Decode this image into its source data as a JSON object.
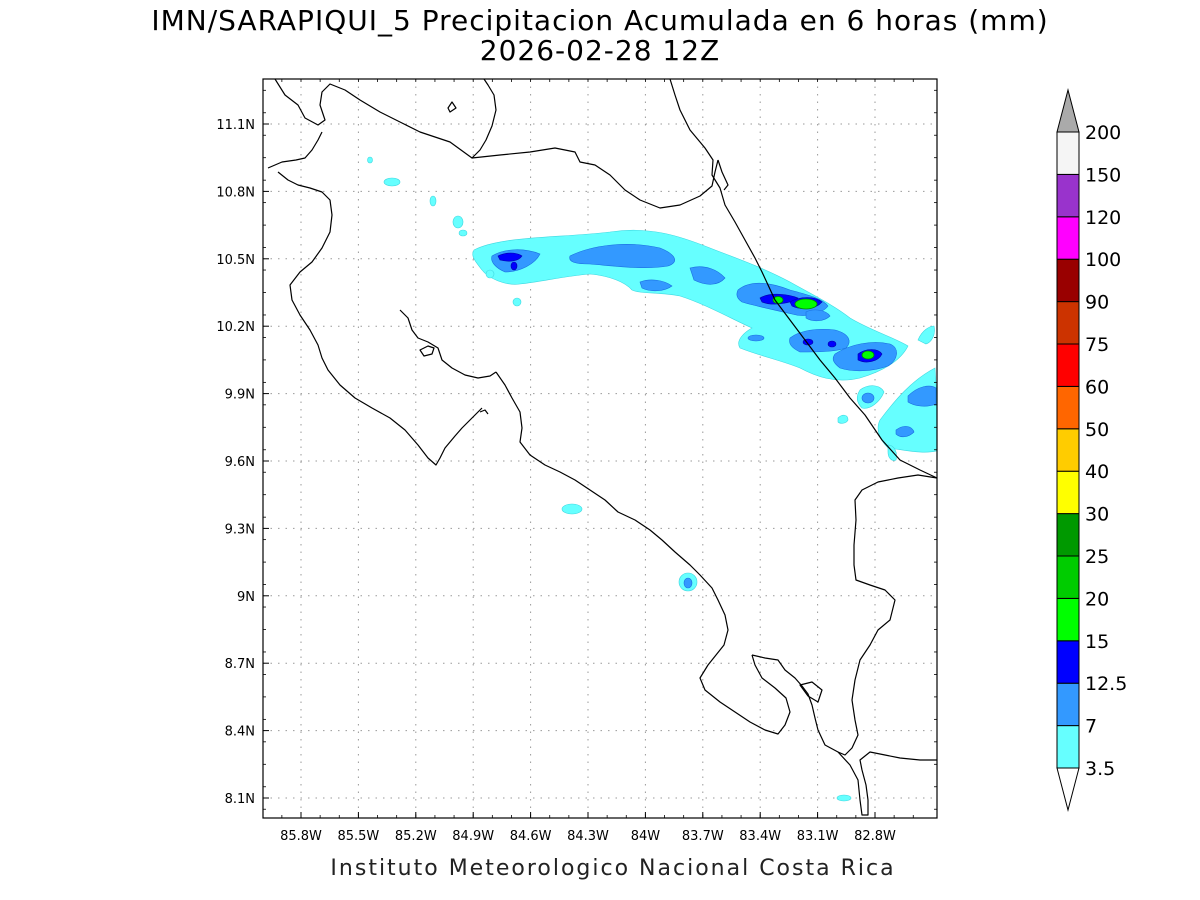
{
  "title": {
    "line1": "IMN/SARAPIQUI_5 Precipitacion Acumulada en 6 horas (mm)",
    "line2": "2026-02-28 12Z"
  },
  "footer": "Instituto Meteorologico Nacional Costa Rica",
  "map": {
    "extent": {
      "lon_min": -86.15,
      "lon_max": -82.55,
      "lat_min": 7.95,
      "lat_max": 11.3
    },
    "lon_ticks": [
      "85.8W",
      "85.5W",
      "85.2W",
      "84.9W",
      "84.6W",
      "84.3W",
      "84W",
      "83.7W",
      "83.4W",
      "83.1W",
      "82.8W"
    ],
    "lat_ticks": [
      "11.1N",
      "10.8N",
      "10.5N",
      "10.2N",
      "9.9N",
      "9.6N",
      "9.3N",
      "9N",
      "8.7N",
      "8.4N",
      "8.1N"
    ],
    "grid": "dotted"
  },
  "colorbar": {
    "levels": [
      "3.5",
      "7",
      "12.5",
      "15",
      "20",
      "25",
      "30",
      "40",
      "50",
      "60",
      "75",
      "90",
      "100",
      "120",
      "150",
      "200"
    ],
    "colors": [
      "#66ffff",
      "#3399ff",
      "#0000ff",
      "#00ff00",
      "#00cc00",
      "#009900",
      "#ffff00",
      "#ffcc00",
      "#ff6600",
      "#ff0000",
      "#cc3300",
      "#990000",
      "#ff00ff",
      "#9933cc",
      "#f5f5f5"
    ],
    "under_color": "#ffffff",
    "over_color": "#aaaaaa"
  }
}
